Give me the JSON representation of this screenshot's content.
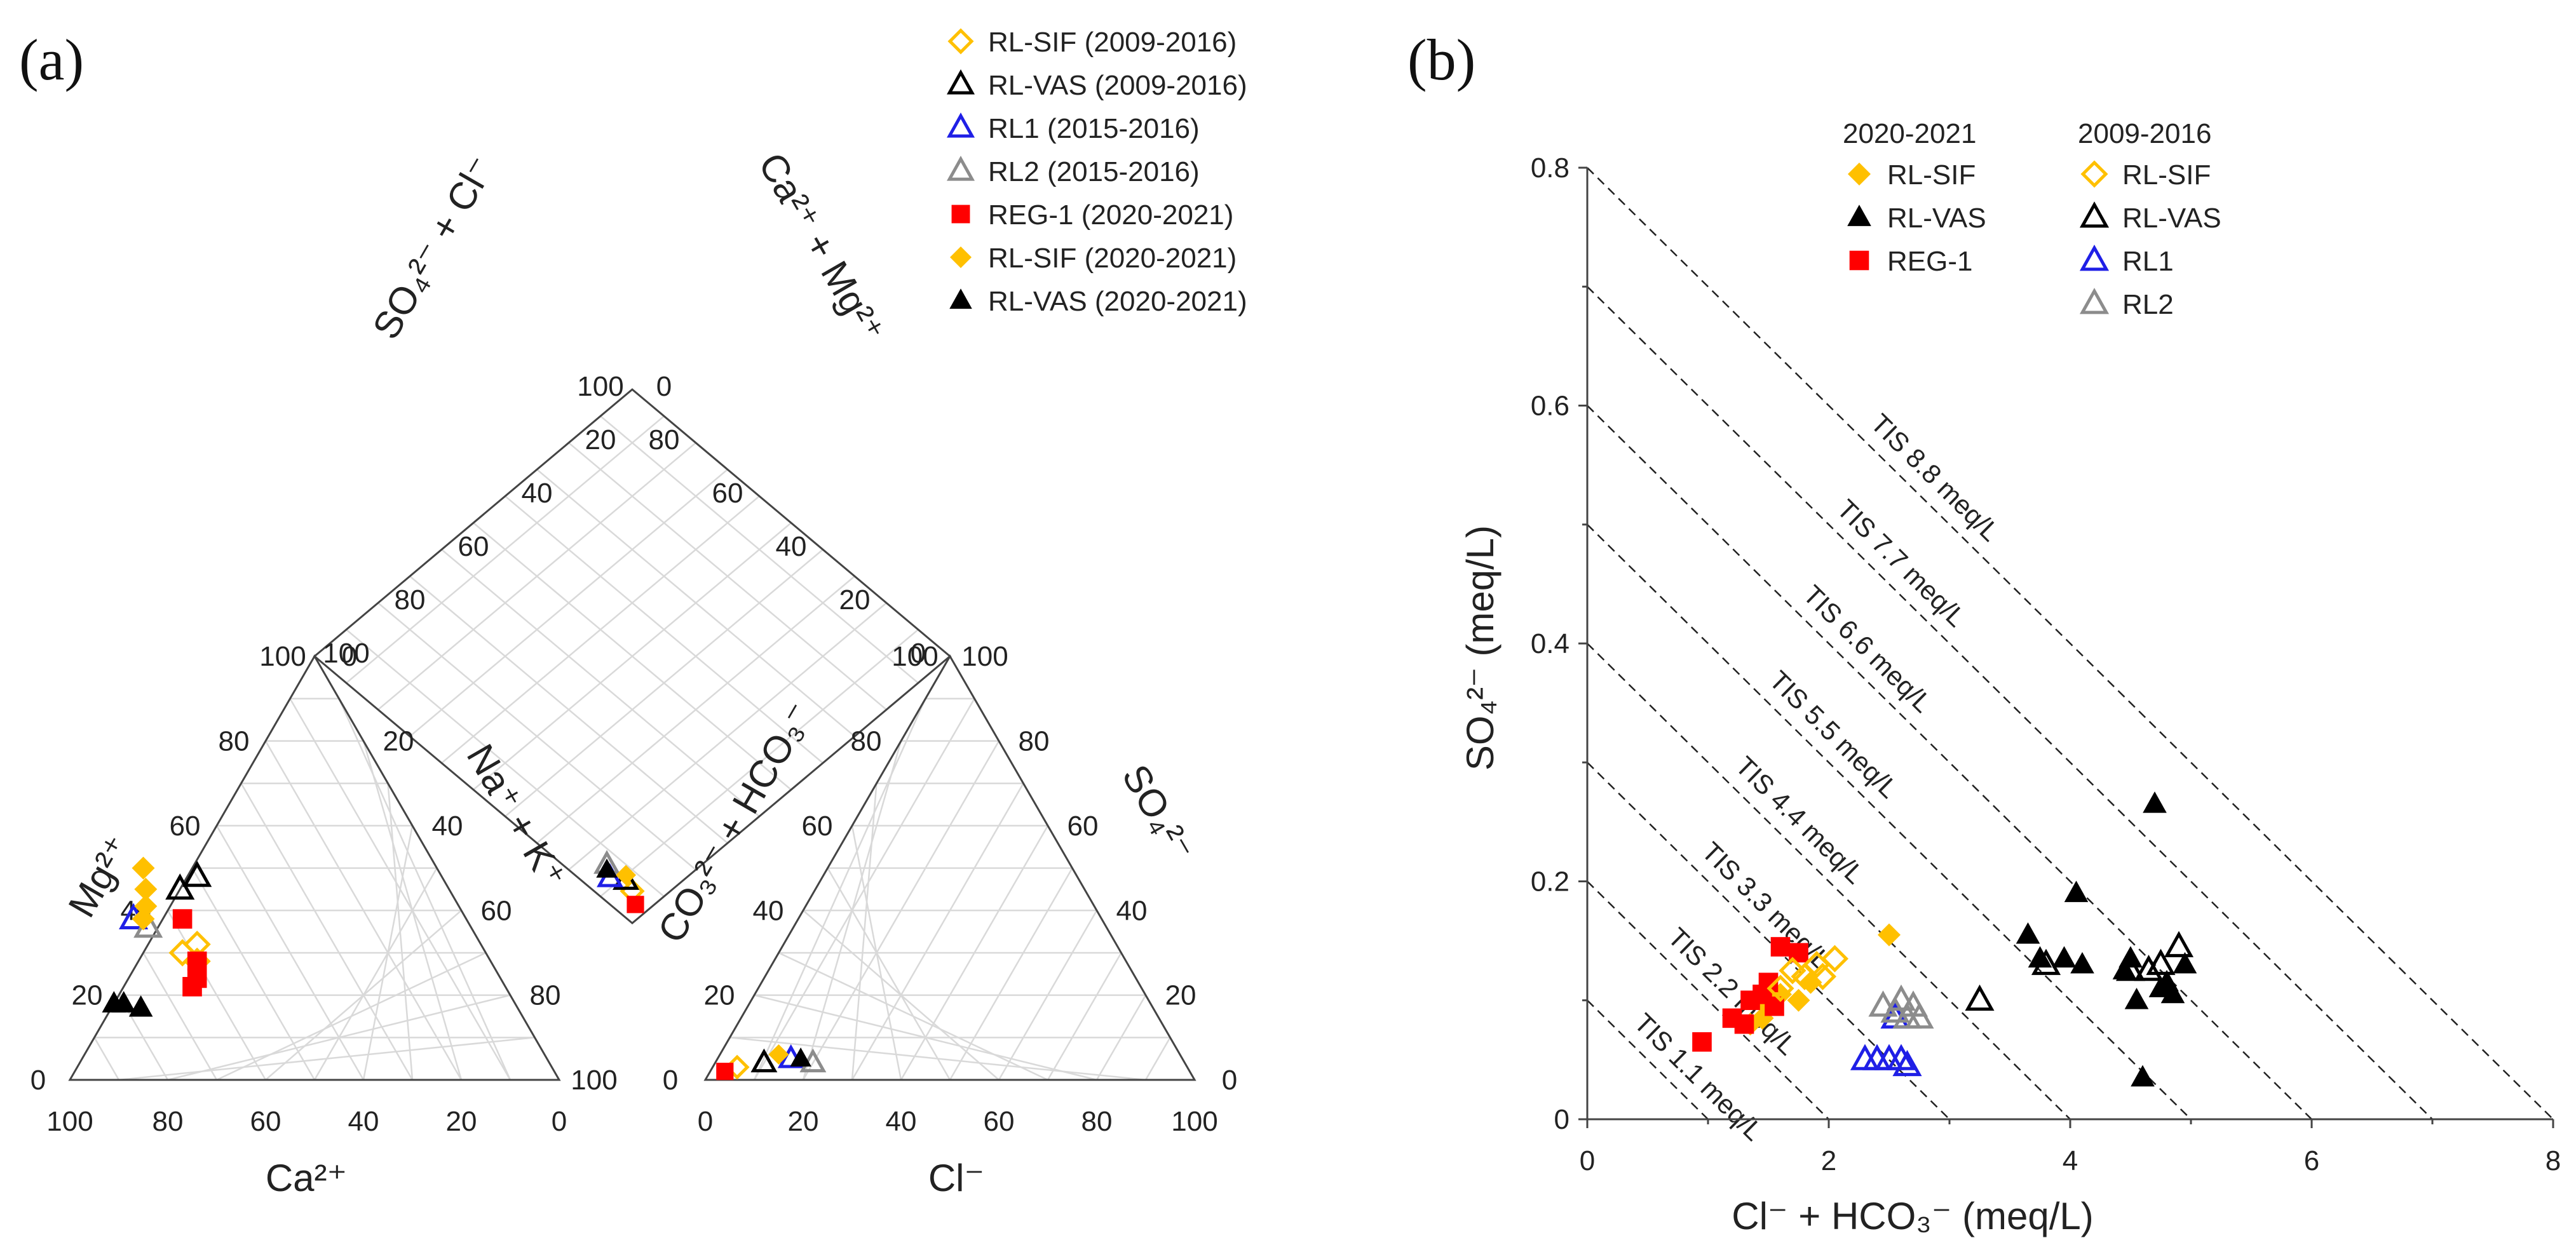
{
  "panels": {
    "a": "(a)",
    "b": "(b)"
  },
  "piper": {
    "legend": [
      {
        "label": "RL-SIF (2009-2016)",
        "marker": "diamond-open",
        "color": "#FFC000"
      },
      {
        "label": "RL-VAS (2009-2016)",
        "marker": "triangle-open",
        "color": "#000000"
      },
      {
        "label": "RL1 (2015-2016)",
        "marker": "triangle-open",
        "color": "#1F1FE6"
      },
      {
        "label": "RL2 (2015-2016)",
        "marker": "triangle-open",
        "color": "#8C8C8C"
      },
      {
        "label": "REG-1 (2020-2021)",
        "marker": "square",
        "color": "#FF0000"
      },
      {
        "label": "RL-SIF (2020-2021)",
        "marker": "diamond",
        "color": "#FFC000"
      },
      {
        "label": "RL-VAS (2020-2021)",
        "marker": "triangle",
        "color": "#000000"
      }
    ],
    "labels": {
      "cation_bottom": "Ca²⁺",
      "cation_left": "Mg²⁺",
      "cation_right": "Na⁺ + K⁺",
      "anion_bottom": "Cl⁻",
      "anion_left": "CO₃²⁻ + HCO₃⁻",
      "anion_right": "SO₄²⁻",
      "diamond_left": "SO₄²⁻ + Cl⁻",
      "diamond_right": "Ca²⁺ + Mg²⁺"
    },
    "cation_bottom_ticks": [
      "100",
      "80",
      "60",
      "40",
      "20",
      "0"
    ],
    "cation_left_ticks": [
      "0",
      "20",
      "40",
      "60",
      "80",
      "100"
    ],
    "cation_right_ticks": [
      "0",
      "20",
      "40",
      "60",
      "80",
      "100"
    ],
    "anion_bottom_ticks": [
      "0",
      "20",
      "40",
      "60",
      "80",
      "100"
    ],
    "anion_left_ticks": [
      "100",
      "80",
      "60",
      "40",
      "20",
      "0"
    ],
    "anion_right_ticks": [
      "0",
      "20",
      "40",
      "60",
      "80",
      "100"
    ],
    "diamond_left_ticks": [
      "0",
      "20",
      "40",
      "60",
      "80",
      "100"
    ],
    "diamond_right_ticks": [
      "100",
      "80",
      "60",
      "40",
      "20",
      "0"
    ]
  },
  "chart_data": {
    "type": "scatter",
    "title": "",
    "xlabel": "Cl⁻ + HCO₃⁻ (meq/L)",
    "ylabel": "SO₄²⁻ (meq/L)",
    "xlim": [
      0,
      8
    ],
    "ylim": [
      0,
      0.8
    ],
    "xticks": [
      "0",
      "2",
      "4",
      "6",
      "8"
    ],
    "yticks": [
      "0",
      "0.2",
      "0.4",
      "0.6",
      "0.8"
    ],
    "legend_groups": [
      {
        "title": "2020-2021",
        "items": [
          "RL-SIF",
          "RL-VAS",
          "REG-1"
        ]
      },
      {
        "title": "2009-2016",
        "items": [
          "RL-SIF",
          "RL-VAS",
          "RL1",
          "RL2"
        ]
      }
    ],
    "tis_lines": [
      {
        "label": "TIS 1.1 meq/L",
        "value": 1.1
      },
      {
        "label": "TIS 2.2 meq/L",
        "value": 2.2
      },
      {
        "label": "TIS 3.3 meq/L",
        "value": 3.3
      },
      {
        "label": "TIS 4.4 meq/L",
        "value": 4.4
      },
      {
        "label": "TIS 5.5 meq/L",
        "value": 5.5
      },
      {
        "label": "TIS 6.6 meq/L",
        "value": 6.6
      },
      {
        "label": "TIS 7.7 meq/L",
        "value": 7.7
      },
      {
        "label": "TIS 8.8 meq/L",
        "value": 8.8
      }
    ],
    "series": [
      {
        "name": "RL-SIF",
        "period": "2020-2021",
        "marker": "diamond",
        "color": "#FFC000",
        "points": [
          [
            1.35,
            0.08
          ],
          [
            1.45,
            0.085
          ],
          [
            1.5,
            0.095
          ],
          [
            1.6,
            0.105
          ],
          [
            1.75,
            0.1
          ],
          [
            1.85,
            0.115
          ],
          [
            2.5,
            0.155
          ]
        ]
      },
      {
        "name": "RL-VAS",
        "period": "2020-2021",
        "marker": "triangle",
        "color": "#000000",
        "points": [
          [
            3.65,
            0.155
          ],
          [
            3.75,
            0.135
          ],
          [
            3.95,
            0.135
          ],
          [
            4.05,
            0.19
          ],
          [
            4.1,
            0.13
          ],
          [
            4.45,
            0.125
          ],
          [
            4.5,
            0.135
          ],
          [
            4.55,
            0.1
          ],
          [
            4.6,
            0.035
          ],
          [
            4.7,
            0.265
          ],
          [
            4.75,
            0.11
          ],
          [
            4.8,
            0.115
          ],
          [
            4.85,
            0.105
          ],
          [
            4.95,
            0.13
          ]
        ]
      },
      {
        "name": "REG-1",
        "period": "2020-2021",
        "marker": "square",
        "color": "#FF0000",
        "points": [
          [
            0.95,
            0.065
          ],
          [
            1.2,
            0.085
          ],
          [
            1.3,
            0.08
          ],
          [
            1.35,
            0.1
          ],
          [
            1.45,
            0.105
          ],
          [
            1.5,
            0.115
          ],
          [
            1.55,
            0.095
          ],
          [
            1.6,
            0.145
          ],
          [
            1.75,
            0.14
          ]
        ]
      },
      {
        "name": "RL-SIF",
        "period": "2009-2016",
        "marker": "diamond-open",
        "color": "#FFC000",
        "points": [
          [
            1.6,
            0.11
          ],
          [
            1.7,
            0.125
          ],
          [
            1.8,
            0.12
          ],
          [
            1.9,
            0.13
          ],
          [
            1.95,
            0.12
          ],
          [
            2.05,
            0.135
          ]
        ]
      },
      {
        "name": "RL-VAS",
        "period": "2009-2016",
        "marker": "triangle-open",
        "color": "#000000",
        "points": [
          [
            3.25,
            0.1
          ],
          [
            3.8,
            0.13
          ],
          [
            4.5,
            0.125
          ],
          [
            4.65,
            0.125
          ],
          [
            4.75,
            0.13
          ],
          [
            4.9,
            0.145
          ]
        ]
      },
      {
        "name": "RL1",
        "period": "2009-2016",
        "marker": "triangle-open",
        "color": "#1F1FE6",
        "points": [
          [
            2.3,
            0.05
          ],
          [
            2.4,
            0.05
          ],
          [
            2.5,
            0.05
          ],
          [
            2.55,
            0.085
          ],
          [
            2.6,
            0.05
          ],
          [
            2.65,
            0.045
          ]
        ]
      },
      {
        "name": "RL2",
        "period": "2009-2016",
        "marker": "triangle-open",
        "color": "#8C8C8C",
        "points": [
          [
            2.45,
            0.095
          ],
          [
            2.55,
            0.09
          ],
          [
            2.6,
            0.1
          ],
          [
            2.65,
            0.085
          ],
          [
            2.7,
            0.095
          ],
          [
            2.75,
            0.085
          ]
        ]
      }
    ]
  }
}
